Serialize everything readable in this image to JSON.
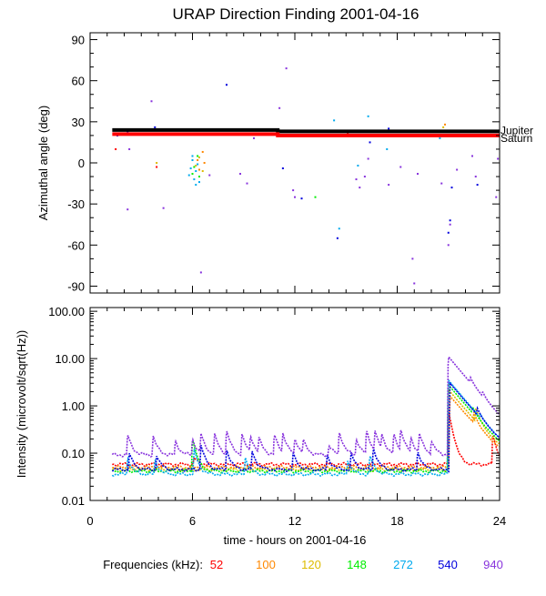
{
  "chart_data": [
    {
      "type": "scatter",
      "title": "URAP Direction Finding  2001-04-16",
      "xlabel": "",
      "ylabel": "Azimuthal angle (deg)",
      "xlim": [
        0,
        24
      ],
      "ylim": [
        -95,
        95
      ],
      "x_ticks": [
        "0",
        "6",
        "12",
        "18",
        "24"
      ],
      "y_ticks": [
        "90",
        "60",
        "30",
        "0",
        "-30",
        "-60",
        "-90"
      ],
      "reference_lines": [
        {
          "name": "Jupiter",
          "label": "Jupiter",
          "color": "#000000",
          "points": [
            [
              1.3,
              24
            ],
            [
              11.0,
              24
            ],
            [
              11.0,
              23
            ],
            [
              24,
              23
            ]
          ]
        },
        {
          "name": "Saturn",
          "label": "Saturn",
          "color": "#ff0000",
          "points": [
            [
              1.3,
              21
            ],
            [
              11.0,
              21
            ],
            [
              11.0,
              20
            ],
            [
              24,
              20
            ]
          ]
        }
      ],
      "series": [
        {
          "name": "52",
          "color": "#ff0000",
          "points": [
            [
              1.5,
              10
            ],
            [
              3.9,
              -3
            ],
            [
              15.1,
              21
            ]
          ]
        },
        {
          "name": "100",
          "color": "#ff8800",
          "points": [
            [
              6.3,
              2
            ],
            [
              6.4,
              -5
            ],
            [
              6.6,
              8
            ],
            [
              6.7,
              0
            ],
            [
              20.8,
              28
            ]
          ]
        },
        {
          "name": "120",
          "color": "#ddbb00",
          "points": [
            [
              3.9,
              0
            ],
            [
              6.2,
              -2
            ],
            [
              6.4,
              4
            ],
            [
              6.6,
              -6
            ],
            [
              20.7,
              26
            ]
          ]
        },
        {
          "name": "148",
          "color": "#00ee00",
          "points": [
            [
              6.0,
              -8
            ],
            [
              6.1,
              -3
            ],
            [
              6.3,
              5
            ],
            [
              6.4,
              -10
            ],
            [
              13.2,
              -25
            ],
            [
              16.1,
              20
            ]
          ]
        },
        {
          "name": "272",
          "color": "#00aaee",
          "points": [
            [
              5.9,
              -4
            ],
            [
              6.0,
              2
            ],
            [
              6.1,
              -12
            ],
            [
              6.2,
              -6
            ],
            [
              6.3,
              -1
            ],
            [
              6.2,
              -16
            ],
            [
              6.0,
              5
            ],
            [
              6.4,
              -14
            ],
            [
              5.8,
              -9
            ],
            [
              14.3,
              31
            ],
            [
              14.6,
              -48
            ],
            [
              15.7,
              -2
            ],
            [
              16.3,
              34
            ],
            [
              17.4,
              10
            ],
            [
              20.5,
              18
            ]
          ]
        },
        {
          "name": "540",
          "color": "#0000dd",
          "points": [
            [
              1.6,
              20
            ],
            [
              2.2,
              23
            ],
            [
              3.8,
              26
            ],
            [
              8.0,
              57
            ],
            [
              11.3,
              -4
            ],
            [
              12.4,
              -26
            ],
            [
              14.5,
              -55
            ],
            [
              16.4,
              15
            ],
            [
              17.5,
              25
            ],
            [
              21.2,
              -18
            ],
            [
              21.0,
              -51
            ],
            [
              21.1,
              -42
            ],
            [
              22.7,
              -16
            ]
          ]
        },
        {
          "name": "940",
          "color": "#8833dd",
          "points": [
            [
              2.2,
              -34
            ],
            [
              2.3,
              10
            ],
            [
              3.6,
              45
            ],
            [
              4.3,
              -33
            ],
            [
              6.5,
              -80
            ],
            [
              7.0,
              -9
            ],
            [
              8.8,
              -8
            ],
            [
              9.2,
              -15
            ],
            [
              9.6,
              18
            ],
            [
              11.1,
              40
            ],
            [
              11.5,
              69
            ],
            [
              11.9,
              -20
            ],
            [
              12.0,
              -25
            ],
            [
              15.6,
              -12
            ],
            [
              15.8,
              -18
            ],
            [
              16.1,
              -10
            ],
            [
              16.3,
              3
            ],
            [
              17.5,
              -16
            ],
            [
              18.2,
              -3
            ],
            [
              18.9,
              -70
            ],
            [
              19.0,
              -88
            ],
            [
              19.2,
              -8
            ],
            [
              20.6,
              -15
            ],
            [
              21.0,
              -60
            ],
            [
              21.1,
              -45
            ],
            [
              21.5,
              -5
            ],
            [
              22.4,
              5
            ],
            [
              22.6,
              -10
            ],
            [
              23.8,
              -25
            ],
            [
              23.9,
              3
            ]
          ]
        }
      ]
    },
    {
      "type": "line",
      "title": "",
      "xlabel": "time - hours on 2001-04-16",
      "ylabel": "Intensity (microvolt/sqrt(Hz))",
      "xlim": [
        0,
        24
      ],
      "ylim": [
        0.01,
        120
      ],
      "yscale": "log",
      "x_ticks": [
        "0",
        "6",
        "12",
        "18",
        "24"
      ],
      "y_ticks": [
        "100.00",
        "10.00",
        "1.00",
        "0.10",
        "0.01"
      ],
      "legend_title": "Frequencies (kHz):",
      "series": [
        {
          "name": "52",
          "color": "#ff0000",
          "baseline": 0.058,
          "spikes": [
            [
              6.1,
              0.08
            ],
            [
              21.0,
              0.8
            ],
            [
              23.6,
              0.25
            ]
          ]
        },
        {
          "name": "100",
          "color": "#ff8800",
          "baseline": 0.05,
          "spikes": [
            [
              21.1,
              1.6
            ],
            [
              22.5,
              0.35
            ]
          ]
        },
        {
          "name": "120",
          "color": "#ddbb00",
          "baseline": 0.045,
          "spikes": [
            [
              21.0,
              2.2
            ],
            [
              22.6,
              0.5
            ]
          ]
        },
        {
          "name": "148",
          "color": "#00ee00",
          "baseline": 0.042,
          "spikes": [
            [
              6.0,
              0.2
            ],
            [
              21.0,
              2.8
            ],
            [
              22.4,
              0.3
            ]
          ]
        },
        {
          "name": "272",
          "color": "#00aaee",
          "baseline": 0.036,
          "spikes": [
            [
              2.2,
              0.08
            ],
            [
              3.8,
              0.07
            ],
            [
              6.1,
              0.12
            ],
            [
              9.1,
              0.08
            ],
            [
              15.1,
              0.07
            ],
            [
              16.4,
              0.09
            ],
            [
              21.0,
              3.5
            ],
            [
              22.9,
              0.12
            ]
          ]
        },
        {
          "name": "540",
          "color": "#0000dd",
          "baseline": 0.045,
          "spikes": [
            [
              2.3,
              0.1
            ],
            [
              3.9,
              0.09
            ],
            [
              6.5,
              0.15
            ],
            [
              8.0,
              0.12
            ],
            [
              9.5,
              0.11
            ],
            [
              11.9,
              0.1
            ],
            [
              13.9,
              0.09
            ],
            [
              15.3,
              0.1
            ],
            [
              16.6,
              0.13
            ],
            [
              19.2,
              0.11
            ],
            [
              21.1,
              3.0
            ],
            [
              22.7,
              0.3
            ]
          ]
        },
        {
          "name": "940",
          "color": "#8833dd",
          "baseline": 0.092,
          "spikes": [
            [
              2.2,
              0.25
            ],
            [
              3.7,
              0.23
            ],
            [
              5.0,
              0.18
            ],
            [
              6.0,
              0.2
            ],
            [
              6.5,
              0.25
            ],
            [
              7.3,
              0.25
            ],
            [
              8.0,
              0.3
            ],
            [
              8.9,
              0.25
            ],
            [
              9.4,
              0.22
            ],
            [
              9.9,
              0.2
            ],
            [
              10.8,
              0.25
            ],
            [
              11.3,
              0.25
            ],
            [
              12.0,
              0.2
            ],
            [
              12.5,
              0.18
            ],
            [
              14.0,
              0.15
            ],
            [
              14.6,
              0.28
            ],
            [
              15.6,
              0.2
            ],
            [
              16.2,
              0.3
            ],
            [
              16.7,
              0.28
            ],
            [
              17.1,
              0.22
            ],
            [
              17.8,
              0.25
            ],
            [
              18.2,
              0.3
            ],
            [
              18.8,
              0.2
            ],
            [
              19.3,
              0.25
            ],
            [
              20.0,
              0.18
            ],
            [
              21.0,
              11.0
            ],
            [
              22.3,
              1.0
            ],
            [
              23.0,
              0.5
            ]
          ]
        }
      ]
    }
  ]
}
